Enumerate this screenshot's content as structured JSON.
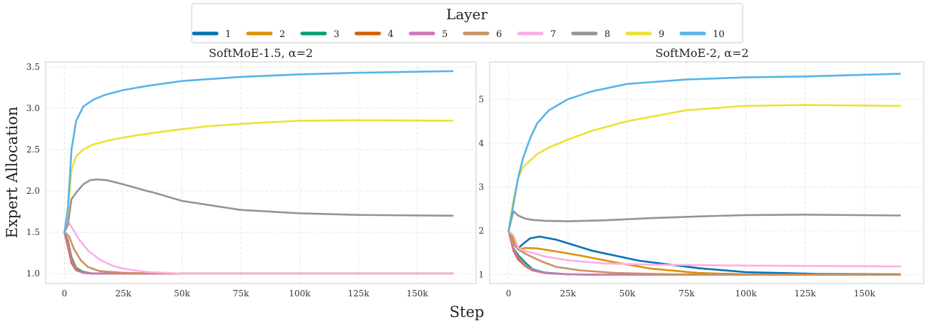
{
  "figure": {
    "xlabel": "Step",
    "ylabel": "Expert Allocation",
    "legend_title": "Layer",
    "legend_placement": "top-center"
  },
  "colors": {
    "1": "#0173b2",
    "2": "#de8f05",
    "3": "#029e73",
    "4": "#d55e00",
    "5": "#cc78bc",
    "6": "#ca9161",
    "7": "#fbafe4",
    "8": "#949494",
    "9": "#ece133",
    "10": "#56b4e9"
  },
  "chart_data": [
    {
      "type": "line",
      "title": "SoftMoE-1.5, α=2",
      "xlabel": "Step",
      "ylabel": "Expert Allocation",
      "xlim": [
        -8000,
        175000
      ],
      "ylim": [
        0.88,
        3.56
      ],
      "xticks": [
        0,
        25000,
        50000,
        75000,
        100000,
        125000,
        150000
      ],
      "xtick_labels": [
        "0",
        "25k",
        "50k",
        "75k",
        "100k",
        "125k",
        "150k"
      ],
      "yticks": [
        1.0,
        1.5,
        2.0,
        2.5,
        3.0,
        3.5
      ],
      "ytick_labels": [
        "1.0",
        "1.5",
        "2.0",
        "2.5",
        "3.0",
        "3.5"
      ],
      "grid": true,
      "series": [
        {
          "name": "1",
          "x": [
            0,
            1500,
            3000,
            5000,
            8000,
            12000,
            20000,
            40000,
            165000
          ],
          "values": [
            1.5,
            1.35,
            1.15,
            1.05,
            1.01,
            1.0,
            1.0,
            1.0,
            1.0
          ]
        },
        {
          "name": "2",
          "x": [
            0,
            1500,
            3000,
            5000,
            8000,
            12000,
            20000,
            40000,
            165000
          ],
          "values": [
            1.5,
            1.4,
            1.2,
            1.07,
            1.02,
            1.0,
            1.0,
            1.0,
            1.0
          ]
        },
        {
          "name": "3",
          "x": [
            0,
            1500,
            3000,
            5000,
            8000,
            12000,
            20000,
            40000,
            165000
          ],
          "values": [
            1.5,
            1.38,
            1.18,
            1.06,
            1.02,
            1.0,
            1.0,
            1.0,
            1.0
          ]
        },
        {
          "name": "4",
          "x": [
            0,
            1500,
            3000,
            5000,
            8000,
            12000,
            20000,
            40000,
            165000
          ],
          "values": [
            1.5,
            1.32,
            1.13,
            1.04,
            1.01,
            1.0,
            1.0,
            1.0,
            1.0
          ]
        },
        {
          "name": "5",
          "x": [
            0,
            1500,
            3000,
            5000,
            8000,
            12000,
            20000,
            40000,
            165000
          ],
          "values": [
            1.5,
            1.36,
            1.16,
            1.05,
            1.01,
            1.0,
            1.0,
            1.0,
            1.0
          ]
        },
        {
          "name": "6",
          "x": [
            0,
            2000,
            4000,
            7000,
            10000,
            15000,
            25000,
            40000,
            165000
          ],
          "values": [
            1.5,
            1.45,
            1.3,
            1.16,
            1.08,
            1.03,
            1.01,
            1.0,
            1.0
          ]
        },
        {
          "name": "7",
          "x": [
            0,
            2000,
            4000,
            6000,
            10000,
            15000,
            20000,
            25000,
            35000,
            50000,
            165000
          ],
          "values": [
            1.5,
            1.61,
            1.52,
            1.42,
            1.28,
            1.17,
            1.1,
            1.06,
            1.02,
            1.0,
            1.0
          ]
        },
        {
          "name": "8",
          "x": [
            0,
            1500,
            3000,
            5000,
            8000,
            11000,
            14000,
            18000,
            25000,
            35000,
            38000,
            50000,
            75000,
            100000,
            125000,
            165000
          ],
          "values": [
            1.5,
            1.6,
            1.9,
            1.98,
            2.08,
            2.13,
            2.14,
            2.13,
            2.08,
            2.0,
            1.98,
            1.88,
            1.77,
            1.73,
            1.71,
            1.7
          ]
        },
        {
          "name": "9",
          "x": [
            0,
            1500,
            3000,
            5000,
            8000,
            12000,
            20000,
            30000,
            45000,
            60000,
            80000,
            100000,
            125000,
            165000
          ],
          "values": [
            1.5,
            1.75,
            2.25,
            2.42,
            2.5,
            2.56,
            2.62,
            2.67,
            2.73,
            2.78,
            2.82,
            2.85,
            2.855,
            2.85
          ]
        },
        {
          "name": "10",
          "x": [
            0,
            1500,
            3000,
            5000,
            8000,
            12000,
            17000,
            25000,
            35000,
            50000,
            75000,
            100000,
            125000,
            165000
          ],
          "values": [
            1.5,
            1.8,
            2.5,
            2.85,
            3.02,
            3.1,
            3.16,
            3.22,
            3.27,
            3.33,
            3.38,
            3.41,
            3.43,
            3.45
          ]
        }
      ]
    },
    {
      "type": "line",
      "title": "SoftMoE-2, α=2",
      "xlabel": "Step",
      "ylabel": "Expert Allocation",
      "xlim": [
        -8000,
        175000
      ],
      "ylim": [
        0.8,
        5.85
      ],
      "xticks": [
        0,
        25000,
        50000,
        75000,
        100000,
        125000,
        150000
      ],
      "xtick_labels": [
        "0",
        "25k",
        "50k",
        "75k",
        "100k",
        "125k",
        "150k"
      ],
      "yticks": [
        1,
        2,
        3,
        4,
        5
      ],
      "ytick_labels": [
        "1",
        "2",
        "3",
        "4",
        "5"
      ],
      "grid": true,
      "series": [
        {
          "name": "1",
          "x": [
            0,
            2000,
            4000,
            6000,
            9000,
            13000,
            20000,
            35000,
            55000,
            80000,
            100000,
            130000,
            165000
          ],
          "values": [
            2.0,
            1.85,
            1.6,
            1.7,
            1.83,
            1.87,
            1.8,
            1.55,
            1.32,
            1.15,
            1.06,
            1.02,
            1.01
          ]
        },
        {
          "name": "2",
          "x": [
            0,
            2000,
            4000,
            7000,
            12000,
            20000,
            30000,
            45000,
            60000,
            80000,
            100000,
            165000
          ],
          "values": [
            2.0,
            1.8,
            1.58,
            1.61,
            1.6,
            1.53,
            1.44,
            1.28,
            1.14,
            1.04,
            1.01,
            1.0
          ]
        },
        {
          "name": "3",
          "x": [
            0,
            2000,
            4000,
            7000,
            10000,
            15000,
            25000,
            40000,
            165000
          ],
          "values": [
            2.0,
            1.6,
            1.45,
            1.28,
            1.13,
            1.05,
            1.01,
            1.0,
            1.0
          ]
        },
        {
          "name": "4",
          "x": [
            0,
            2000,
            4000,
            7000,
            10000,
            15000,
            25000,
            40000,
            165000
          ],
          "values": [
            2.0,
            1.55,
            1.35,
            1.2,
            1.1,
            1.04,
            1.01,
            1.0,
            1.0
          ]
        },
        {
          "name": "5",
          "x": [
            0,
            2000,
            4000,
            7000,
            10000,
            15000,
            25000,
            40000,
            165000
          ],
          "values": [
            2.0,
            1.58,
            1.4,
            1.22,
            1.11,
            1.04,
            1.01,
            1.0,
            1.0
          ]
        },
        {
          "name": "6",
          "x": [
            0,
            2000,
            4000,
            7000,
            10000,
            15000,
            20000,
            30000,
            45000,
            70000,
            165000
          ],
          "values": [
            2.0,
            1.7,
            1.58,
            1.48,
            1.4,
            1.28,
            1.18,
            1.1,
            1.04,
            1.01,
            1.0
          ]
        },
        {
          "name": "7",
          "x": [
            0,
            2000,
            4000,
            6000,
            10000,
            15000,
            25000,
            40000,
            60000,
            100000,
            165000
          ],
          "values": [
            2.0,
            1.9,
            1.62,
            1.55,
            1.5,
            1.42,
            1.33,
            1.26,
            1.23,
            1.21,
            1.19
          ]
        },
        {
          "name": "8",
          "x": [
            0,
            2000,
            4000,
            7000,
            10000,
            15000,
            25000,
            40000,
            60000,
            80000,
            100000,
            125000,
            165000
          ],
          "values": [
            2.0,
            2.45,
            2.35,
            2.28,
            2.25,
            2.23,
            2.22,
            2.24,
            2.29,
            2.33,
            2.36,
            2.37,
            2.35
          ]
        },
        {
          "name": "9",
          "x": [
            0,
            2000,
            4000,
            6000,
            9000,
            12000,
            17000,
            25000,
            35000,
            50000,
            75000,
            100000,
            125000,
            165000
          ],
          "values": [
            2.0,
            2.7,
            3.2,
            3.45,
            3.6,
            3.75,
            3.9,
            4.08,
            4.28,
            4.5,
            4.75,
            4.85,
            4.87,
            4.85
          ]
        },
        {
          "name": "10",
          "x": [
            0,
            2000,
            4000,
            6000,
            9000,
            12000,
            17000,
            25000,
            35000,
            50000,
            75000,
            100000,
            125000,
            165000
          ],
          "values": [
            2.0,
            2.6,
            3.2,
            3.65,
            4.1,
            4.45,
            4.75,
            5.0,
            5.18,
            5.35,
            5.45,
            5.5,
            5.52,
            5.58
          ]
        }
      ]
    }
  ]
}
